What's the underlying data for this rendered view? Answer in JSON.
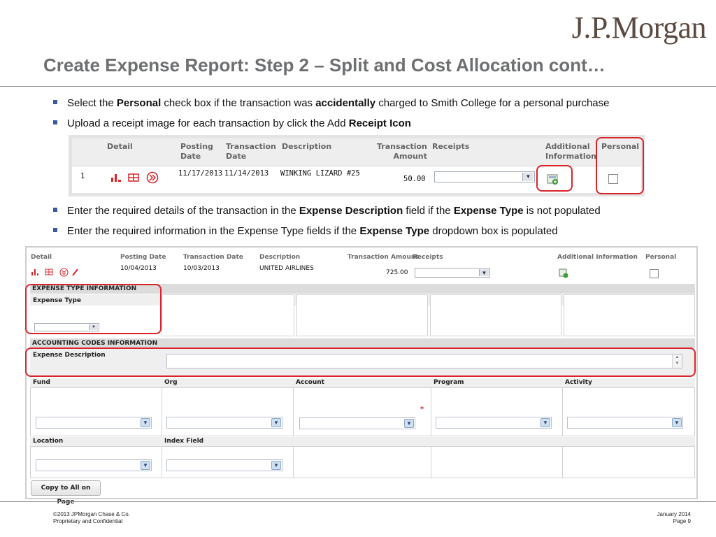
{
  "brand": {
    "logo_text": "J.P.Morgan"
  },
  "title": "Create Expense Report: Step 2 – Split and Cost Allocation cont…",
  "bullets_top": [
    {
      "pre": "Select the ",
      "b1": "Personal",
      "mid": " check box if the transaction was ",
      "b2": "accidentally",
      "post": " charged to Smith College for a personal purchase"
    },
    {
      "pre": "Upload a receipt image for each transaction by click the Add ",
      "b1": "Receipt Icon"
    }
  ],
  "bullets_bottom": [
    {
      "pre": "Enter the required details of the transaction in the ",
      "b1": "Expense Description",
      "mid": " field if the ",
      "b2": "Expense Type",
      "post": " is not populated"
    },
    {
      "pre": "Enter the required information in the Expense Type fields if the ",
      "b1": "Expense Type",
      "post": " dropdown box is populated"
    }
  ],
  "shot1": {
    "headers": {
      "detail": "Detail",
      "posting_date": "Posting\nDate",
      "transaction_date": "Transaction\nDate",
      "description": "Description",
      "transaction_amount": "Transaction\nAmount",
      "receipts": "Receipts",
      "additional_information": "Additional\nInformation",
      "personal": "Personal"
    },
    "row": {
      "num": "1",
      "posting_date": "11/17/2013",
      "transaction_date": "11/14/2013",
      "description": "WINKING LIZARD #25",
      "amount": "50.00"
    }
  },
  "shot2": {
    "headers": {
      "detail": "Detail",
      "posting_date": "Posting Date",
      "transaction_date": "Transaction Date",
      "description": "Description",
      "transaction_amount": "Transaction Amount",
      "receipts": "Receipts",
      "additional_information": "Additional Information",
      "personal": "Personal"
    },
    "row": {
      "posting_date": "10/04/2013",
      "transaction_date": "10/03/2013",
      "description": "UNITED AIRLINES",
      "amount": "725.00"
    },
    "expense_type_section": "EXPENSE TYPE INFORMATION",
    "expense_type_label": "Expense Type",
    "accounting_section": "ACCOUNTING CODES INFORMATION",
    "expense_description_label": "Expense Description",
    "fields": {
      "fund": "Fund",
      "org": "Org",
      "account": "Account",
      "program": "Program",
      "activity": "Activity",
      "location": "Location",
      "index_field": "Index Field"
    },
    "required_marker": "*",
    "copy_button": "Copy to All on Page"
  },
  "footer": {
    "copyright": "©2013 JPMorgan Chase & Co.",
    "confidential": "Proprietary and Confidential",
    "date": "January 2014",
    "page": "Page 9"
  },
  "colors": {
    "highlight": "#d9242a",
    "title": "#6d6f71",
    "bullet": "#3a5aa0"
  }
}
